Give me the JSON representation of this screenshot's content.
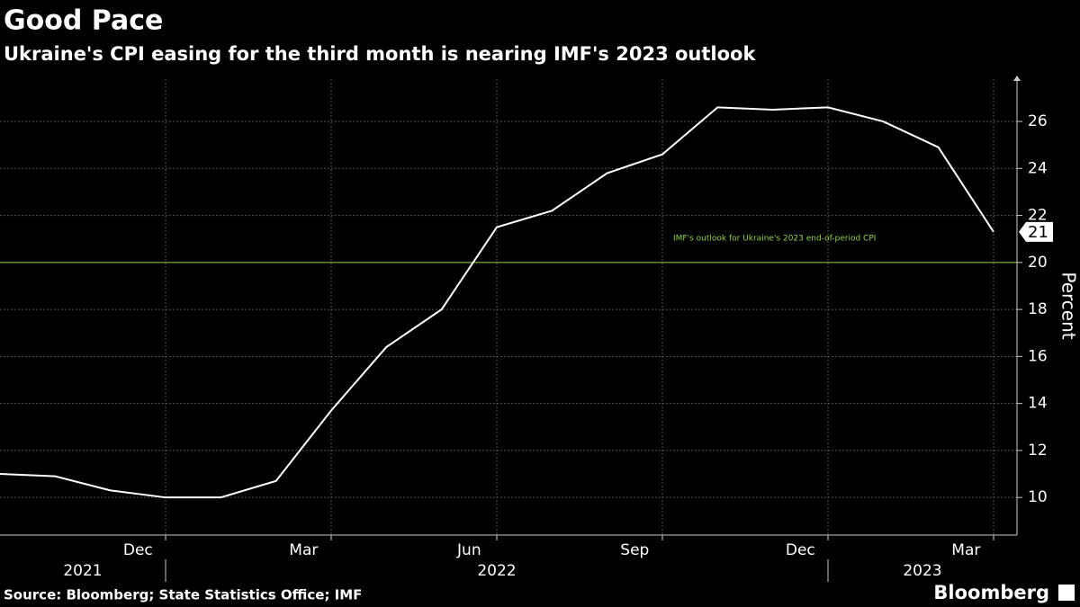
{
  "chart_data": {
    "type": "line",
    "title": "Good Pace",
    "subtitle": "Ukraine's CPI easing for the third month is nearing IMF's 2023 outlook",
    "source": "Source: Bloomberg; State Statistics Office; IMF",
    "brand": "Bloomberg",
    "y_label": "Percent",
    "categories": [
      null,
      null,
      null,
      "Dec",
      null,
      null,
      "Mar",
      null,
      null,
      "Jun",
      null,
      null,
      "Sep",
      null,
      null,
      "Dec",
      null,
      null,
      "Mar"
    ],
    "x_groups": [
      {
        "label": "2021",
        "count": 4
      },
      {
        "label": "2022",
        "count": 12
      },
      {
        "label": "2023",
        "count": 3
      }
    ],
    "series": [
      {
        "name": "CPI",
        "color": "#ffffff",
        "values": [
          11.0,
          10.9,
          10.3,
          10.0,
          10.0,
          10.7,
          13.7,
          16.4,
          18.0,
          21.5,
          22.2,
          23.8,
          24.6,
          26.6,
          26.5,
          26.6,
          26.0,
          24.9,
          21.3
        ]
      }
    ],
    "last_label": "21",
    "reference_line": {
      "value": 20,
      "color": "#8fd14f",
      "label": "IMF's outlook for Ukraine's 2023 end-of-period CPI"
    },
    "ylim": [
      8.4,
      27.8
    ],
    "yticks": [
      10,
      12,
      14,
      16,
      18,
      20,
      22,
      24,
      26
    ],
    "grid": true
  }
}
